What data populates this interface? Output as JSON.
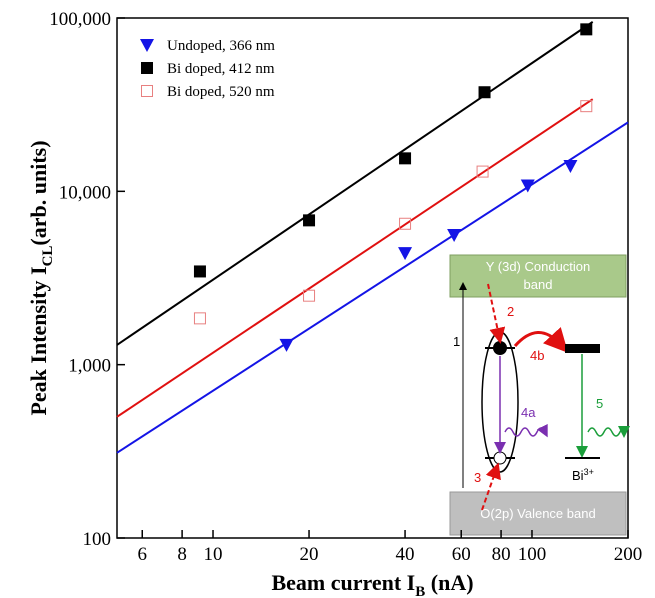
{
  "chart_data": {
    "type": "scatter",
    "log_x": true,
    "log_y": true,
    "xlabel": {
      "text": "Beam current I",
      "sub": "B",
      "after": " (nA)"
    },
    "ylabel": {
      "text": "Peak Intensity I",
      "sub": "CL",
      "after": "(arb. units)"
    },
    "xlim": [
      5,
      200
    ],
    "xticks": [
      6,
      8,
      10,
      20,
      40,
      60,
      80,
      100,
      200
    ],
    "ylim": [
      100,
      100000
    ],
    "yticks": [
      100,
      {
        "value": 1000,
        "label": "1,000"
      },
      {
        "value": 10000,
        "label": "10,000"
      },
      {
        "value": 100000,
        "label": "100,000"
      }
    ],
    "legend": "top-left",
    "series": [
      {
        "name": "Undoped,  366 nm",
        "color": "#1414e6",
        "marker": "triangle-down",
        "x": [
          17,
          40,
          57,
          97,
          132
        ],
        "values": [
          1300,
          4400,
          5600,
          10800,
          14000
        ]
      },
      {
        "name": "Bi doped, 412 nm",
        "color": "#000000",
        "marker": "square",
        "x": [
          9.1,
          20,
          40,
          71,
          148
        ],
        "values": [
          3450,
          6800,
          15500,
          37300,
          86000
        ]
      },
      {
        "name": "Bi doped, 520 nm",
        "color": "#e88080",
        "marker": "open-square",
        "x": [
          9.1,
          20,
          40,
          70,
          148
        ],
        "values": [
          1850,
          2500,
          6500,
          13000,
          31000
        ]
      }
    ],
    "fit_lines": [
      {
        "color": "#1414e6",
        "x": [
          5,
          200
        ],
        "values": [
          310,
          25000
        ]
      },
      {
        "color": "#000000",
        "x": [
          5,
          155
        ],
        "values": [
          1300,
          95000
        ]
      },
      {
        "color": "#e01010",
        "x": [
          5,
          155
        ],
        "values": [
          500,
          34000
        ]
      }
    ],
    "inset": {
      "conduction": [
        "Y (3d) Conduction",
        "band"
      ],
      "valence": "O(2p) Valence band",
      "step_1": "1",
      "step_2": "2",
      "step_3": "3",
      "step_4a": "4a",
      "step_4b": "4b",
      "step_5": "5",
      "bi_label": {
        "base": "Bi",
        "sup": "3+"
      }
    }
  }
}
